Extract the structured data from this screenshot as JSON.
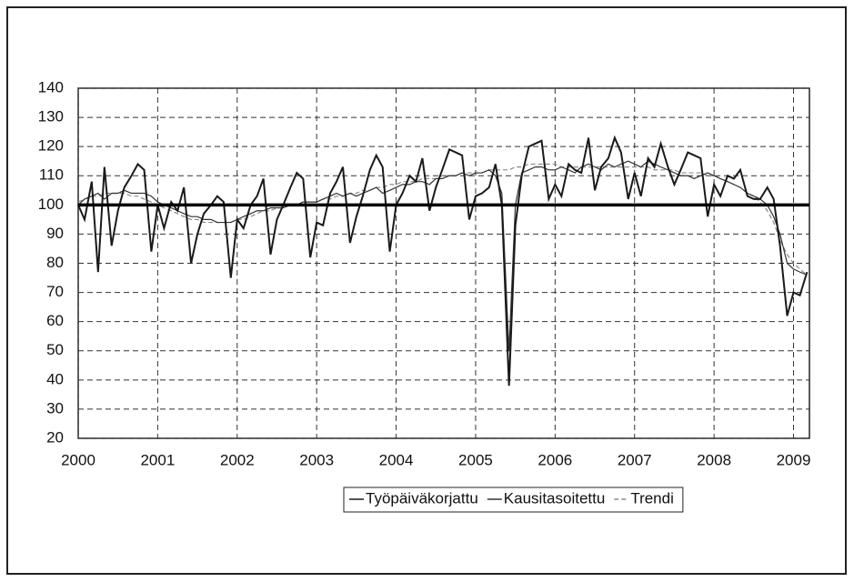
{
  "chart_data": {
    "type": "line",
    "x": [
      2000.0,
      2000.08,
      2000.17,
      2000.25,
      2000.33,
      2000.42,
      2000.5,
      2000.58,
      2000.67,
      2000.75,
      2000.83,
      2000.92,
      2001.0,
      2001.08,
      2001.17,
      2001.25,
      2001.33,
      2001.42,
      2001.5,
      2001.58,
      2001.67,
      2001.75,
      2001.83,
      2001.92,
      2002.0,
      2002.08,
      2002.17,
      2002.25,
      2002.33,
      2002.42,
      2002.5,
      2002.58,
      2002.67,
      2002.75,
      2002.83,
      2002.92,
      2003.0,
      2003.08,
      2003.17,
      2003.25,
      2003.33,
      2003.42,
      2003.5,
      2003.58,
      2003.67,
      2003.75,
      2003.83,
      2003.92,
      2004.0,
      2004.08,
      2004.17,
      2004.25,
      2004.33,
      2004.42,
      2004.5,
      2004.58,
      2004.67,
      2004.75,
      2004.83,
      2004.92,
      2005.0,
      2005.08,
      2005.17,
      2005.25,
      2005.33,
      2005.42,
      2005.5,
      2005.58,
      2005.67,
      2005.75,
      2005.83,
      2005.92,
      2006.0,
      2006.08,
      2006.17,
      2006.25,
      2006.33,
      2006.42,
      2006.5,
      2006.58,
      2006.67,
      2006.75,
      2006.83,
      2006.92,
      2007.0,
      2007.08,
      2007.17,
      2007.25,
      2007.33,
      2007.42,
      2007.5,
      2007.58,
      2007.67,
      2007.75,
      2007.83,
      2007.92,
      2008.0,
      2008.08,
      2008.17,
      2008.25,
      2008.33,
      2008.42,
      2008.5,
      2008.58,
      2008.67,
      2008.75,
      2008.83,
      2008.92,
      2009.0,
      2009.08,
      2009.17
    ],
    "series": [
      {
        "name": "Työpäiväkorjattu",
        "color": "#1a1a1a",
        "values": [
          100,
          95,
          108,
          77,
          113,
          86,
          98,
          106,
          110,
          114,
          112,
          84,
          100,
          92,
          101,
          98,
          106,
          80,
          90,
          97,
          100,
          103,
          101,
          75,
          95,
          92,
          100,
          103,
          109,
          83,
          95,
          100,
          106,
          111,
          109,
          82,
          94,
          93,
          104,
          108,
          113,
          87,
          96,
          103,
          112,
          117,
          113,
          84,
          100,
          104,
          110,
          108,
          116,
          98,
          106,
          112,
          119,
          118,
          117,
          95,
          103,
          104,
          106,
          114,
          100,
          38,
          93,
          110,
          120,
          121,
          122,
          102,
          107,
          103,
          114,
          112,
          111,
          123,
          105,
          113,
          116,
          123,
          118,
          102,
          111,
          103,
          116,
          113,
          121,
          113,
          107,
          112,
          118,
          117,
          116,
          96,
          107,
          103,
          110,
          109,
          112,
          103,
          102,
          102,
          106,
          102,
          86,
          62,
          70,
          69,
          77
        ]
      },
      {
        "name": "Kausitasoitettu",
        "color": "#333333",
        "values": [
          100,
          102,
          103,
          104,
          102,
          104,
          104,
          105,
          104,
          104,
          104,
          103,
          101,
          100,
          99,
          98,
          97,
          96,
          96,
          95,
          95,
          94,
          94,
          94,
          95,
          96,
          97,
          98,
          98,
          99,
          99,
          99,
          100,
          100,
          101,
          101,
          101,
          102,
          103,
          104,
          103,
          104,
          103,
          104,
          105,
          106,
          104,
          105,
          106,
          107,
          107,
          108,
          108,
          107,
          109,
          109,
          110,
          110,
          111,
          110,
          111,
          111,
          112,
          110,
          104,
          50,
          100,
          111,
          112,
          113,
          113,
          112,
          112,
          113,
          112,
          111,
          113,
          114,
          113,
          112,
          114,
          113,
          114,
          115,
          114,
          113,
          115,
          114,
          113,
          112,
          111,
          110,
          110,
          109,
          110,
          111,
          110,
          109,
          108,
          107,
          106,
          104,
          103,
          102,
          100,
          96,
          90,
          80,
          78,
          77,
          76
        ]
      },
      {
        "name": "Trendi",
        "color": "#8a8a8a",
        "dashed": true,
        "values": [
          101,
          102,
          103,
          103,
          104,
          104,
          104,
          104,
          103,
          103,
          102,
          101,
          100,
          99,
          98,
          97,
          96,
          95,
          95,
          94,
          94,
          94,
          94,
          94,
          95,
          95,
          96,
          97,
          98,
          98,
          99,
          99,
          100,
          100,
          101,
          101,
          101,
          102,
          102,
          103,
          103,
          104,
          104,
          105,
          105,
          106,
          106,
          107,
          107,
          108,
          108,
          108,
          109,
          109,
          109,
          110,
          110,
          110,
          111,
          111,
          111,
          111,
          112,
          112,
          112,
          112,
          113,
          113,
          114,
          114,
          114,
          114,
          114,
          113,
          113,
          113,
          113,
          113,
          113,
          113,
          113,
          113,
          113,
          113,
          113,
          113,
          113,
          112,
          112,
          112,
          112,
          111,
          111,
          111,
          111,
          110,
          110,
          109,
          108,
          107,
          106,
          104,
          103,
          101,
          98,
          94,
          88,
          83,
          80,
          78,
          76
        ]
      }
    ],
    "xlim": [
      2000,
      2009.2
    ],
    "xticks": [
      2000,
      2001,
      2002,
      2003,
      2004,
      2005,
      2006,
      2007,
      2008,
      2009
    ],
    "ylim": [
      20,
      140
    ],
    "yticks": [
      20,
      30,
      40,
      50,
      60,
      70,
      80,
      90,
      100,
      110,
      120,
      130,
      140
    ],
    "reference_line": 100,
    "grid": true,
    "legend": "below"
  }
}
